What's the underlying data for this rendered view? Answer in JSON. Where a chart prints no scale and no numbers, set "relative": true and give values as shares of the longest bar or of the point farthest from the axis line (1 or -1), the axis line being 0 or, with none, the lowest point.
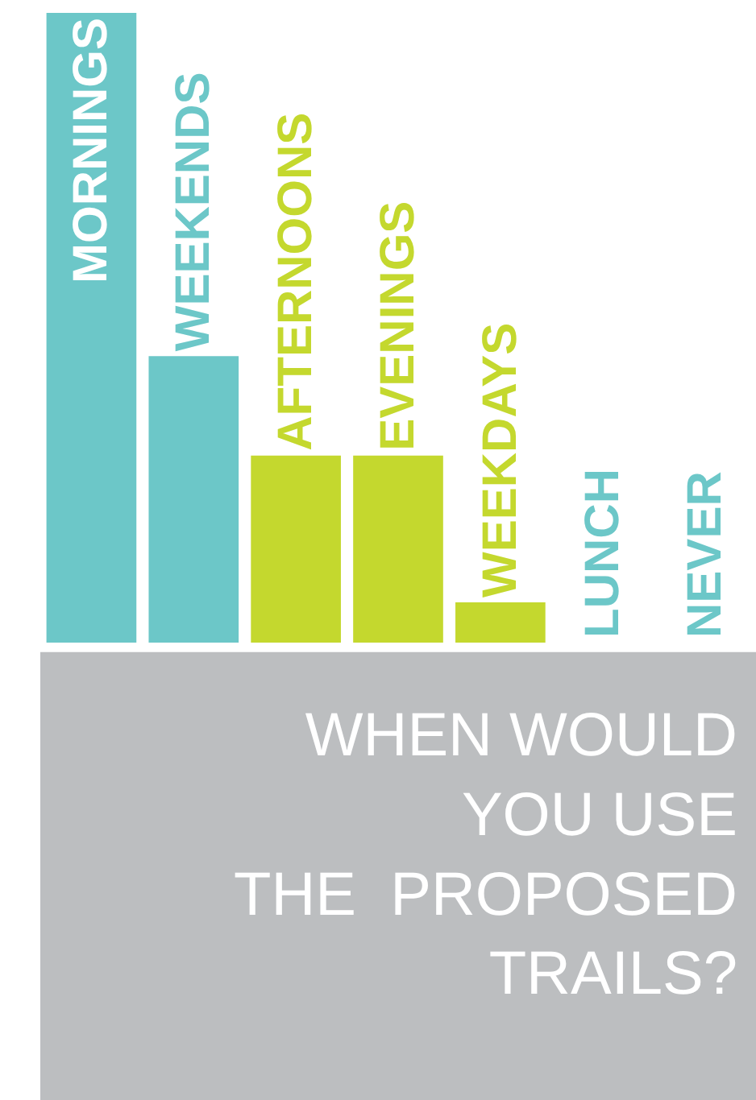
{
  "chart_data": {
    "type": "bar",
    "title": "WHEN WOULD\nYOU USE\nTHE  PROPOSED\nTRAILS?",
    "relative": true,
    "categories": [
      "MORNINGS",
      "WEEKENDS",
      "AFTERNOONS",
      "EVENINGS",
      "WEEKDAYS",
      "LUNCH",
      "NEVER"
    ],
    "values": [
      1,
      0.455,
      0.297,
      0.297,
      0.064,
      0,
      0
    ],
    "colors": [
      "#6cc7c8",
      "#6cc7c8",
      "#c4d82e",
      "#c4d82e",
      "#c4d82e",
      "#6cc7c8",
      "#6cc7c8"
    ],
    "legend": false
  }
}
